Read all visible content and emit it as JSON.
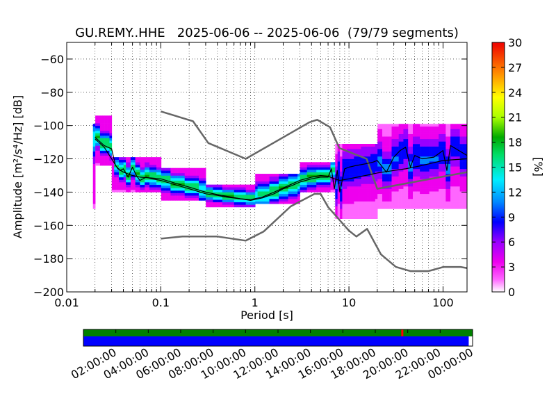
{
  "chart_data": {
    "type": "heatmap",
    "title": "GU.REMY..HHE   2025-06-06 -- 2025-06-06  (79/79 segments)",
    "xlabel": "Period [s]",
    "ylabel": "Amplitude [m²/s⁴/Hz] [dB]",
    "x_scale": "log",
    "xlim": [
      0.01,
      180
    ],
    "ylim": [
      -200,
      -50
    ],
    "x_ticks": [
      {
        "value": 0.01,
        "label": "0.01"
      },
      {
        "value": 0.1,
        "label": "0.1"
      },
      {
        "value": 1,
        "label": "1"
      },
      {
        "value": 10,
        "label": "10"
      },
      {
        "value": 100,
        "label": "100"
      }
    ],
    "y_ticks": [
      {
        "value": -60,
        "label": "−60"
      },
      {
        "value": -80,
        "label": "−80"
      },
      {
        "value": -100,
        "label": "−100"
      },
      {
        "value": -120,
        "label": "−120"
      },
      {
        "value": -140,
        "label": "−140"
      },
      {
        "value": -160,
        "label": "−160"
      },
      {
        "value": -180,
        "label": "−180"
      },
      {
        "value": -200,
        "label": "−200"
      }
    ],
    "grid": true,
    "colorbar": {
      "label": "[%]",
      "range": [
        0,
        30
      ],
      "ticks": [
        "0",
        "3",
        "6",
        "9",
        "12",
        "15",
        "18",
        "21",
        "24",
        "27",
        "30"
      ],
      "colormap": "pqlx"
    },
    "noise_model_high": [
      {
        "x": 0.1,
        "y": -91.5
      },
      {
        "x": 0.22,
        "y": -97.4
      },
      {
        "x": 0.32,
        "y": -110.5
      },
      {
        "x": 0.8,
        "y": -120
      },
      {
        "x": 3.8,
        "y": -98
      },
      {
        "x": 4.6,
        "y": -96.5
      },
      {
        "x": 6.3,
        "y": -101
      },
      {
        "x": 7.9,
        "y": -113.5
      },
      {
        "x": 15.4,
        "y": -120
      },
      {
        "x": 20,
        "y": -138
      },
      {
        "x": 180,
        "y": -128
      }
    ],
    "noise_model_low": [
      {
        "x": 0.1,
        "y": -168
      },
      {
        "x": 0.17,
        "y": -166.7
      },
      {
        "x": 0.4,
        "y": -166.7
      },
      {
        "x": 0.8,
        "y": -169.2
      },
      {
        "x": 1.24,
        "y": -163.7
      },
      {
        "x": 2.4,
        "y": -148.6
      },
      {
        "x": 4.3,
        "y": -141.1
      },
      {
        "x": 5,
        "y": -141.1
      },
      {
        "x": 6,
        "y": -149
      },
      {
        "x": 10,
        "y": -163.2
      },
      {
        "x": 12,
        "y": -166.7
      },
      {
        "x": 15.6,
        "y": -162.1
      },
      {
        "x": 21.9,
        "y": -177.5
      },
      {
        "x": 31.6,
        "y": -185
      },
      {
        "x": 45,
        "y": -187.5
      },
      {
        "x": 70,
        "y": -187.5
      },
      {
        "x": 101,
        "y": -185
      },
      {
        "x": 154,
        "y": -185
      },
      {
        "x": 180,
        "y": -185.7
      }
    ],
    "mean_psd": [
      {
        "x": 0.02,
        "y": -108
      },
      {
        "x": 0.025,
        "y": -113
      },
      {
        "x": 0.03,
        "y": -120
      },
      {
        "x": 0.035,
        "y": -126
      },
      {
        "x": 0.04,
        "y": -128
      },
      {
        "x": 0.05,
        "y": -130
      },
      {
        "x": 0.06,
        "y": -131
      },
      {
        "x": 0.08,
        "y": -131.5
      },
      {
        "x": 0.1,
        "y": -132
      },
      {
        "x": 0.15,
        "y": -135
      },
      {
        "x": 0.2,
        "y": -137
      },
      {
        "x": 0.3,
        "y": -140
      },
      {
        "x": 0.4,
        "y": -141.5
      },
      {
        "x": 0.5,
        "y": -142.5
      },
      {
        "x": 0.7,
        "y": -144
      },
      {
        "x": 0.9,
        "y": -144.5
      },
      {
        "x": 1.2,
        "y": -143
      },
      {
        "x": 1.6,
        "y": -140
      },
      {
        "x": 2,
        "y": -137.5
      },
      {
        "x": 2.5,
        "y": -135
      },
      {
        "x": 3,
        "y": -133
      },
      {
        "x": 4,
        "y": -131
      },
      {
        "x": 5,
        "y": -130
      },
      {
        "x": 6,
        "y": -130.5
      },
      {
        "x": 7,
        "y": -132
      },
      {
        "x": 8,
        "y": -133
      },
      {
        "x": 10,
        "y": -132
      },
      {
        "x": 15,
        "y": -130
      },
      {
        "x": 20,
        "y": -128.5
      },
      {
        "x": 30,
        "y": -127
      },
      {
        "x": 40,
        "y": -126
      },
      {
        "x": 60,
        "y": -124
      },
      {
        "x": 100,
        "y": -121
      },
      {
        "x": 180,
        "y": -120
      }
    ],
    "mode_psd": [
      {
        "x": 0.02,
        "y": -107
      },
      {
        "x": 0.025,
        "y": -112
      },
      {
        "x": 0.03,
        "y": -114
      },
      {
        "x": 0.033,
        "y": -124
      },
      {
        "x": 0.037,
        "y": -127
      },
      {
        "x": 0.04,
        "y": -126
      },
      {
        "x": 0.045,
        "y": -131
      },
      {
        "x": 0.05,
        "y": -125
      },
      {
        "x": 0.055,
        "y": -130
      },
      {
        "x": 0.06,
        "y": -133
      },
      {
        "x": 0.07,
        "y": -131
      },
      {
        "x": 0.08,
        "y": -132
      },
      {
        "x": 0.1,
        "y": -133
      },
      {
        "x": 0.15,
        "y": -136
      },
      {
        "x": 0.2,
        "y": -138
      },
      {
        "x": 0.3,
        "y": -141
      },
      {
        "x": 0.4,
        "y": -142
      },
      {
        "x": 0.5,
        "y": -143
      },
      {
        "x": 0.7,
        "y": -144
      },
      {
        "x": 0.9,
        "y": -145
      },
      {
        "x": 1.2,
        "y": -143.5
      },
      {
        "x": 1.6,
        "y": -141
      },
      {
        "x": 2,
        "y": -138
      },
      {
        "x": 2.5,
        "y": -136
      },
      {
        "x": 3,
        "y": -134
      },
      {
        "x": 4,
        "y": -132
      },
      {
        "x": 5,
        "y": -131
      },
      {
        "x": 6,
        "y": -131
      },
      {
        "x": 6.5,
        "y": -126
      },
      {
        "x": 7,
        "y": -138
      },
      {
        "x": 7.5,
        "y": -127
      },
      {
        "x": 8,
        "y": -140
      },
      {
        "x": 9,
        "y": -126
      },
      {
        "x": 10,
        "y": -125
      },
      {
        "x": 12,
        "y": -124
      },
      {
        "x": 15,
        "y": -123
      },
      {
        "x": 18,
        "y": -122
      },
      {
        "x": 20,
        "y": -121
      },
      {
        "x": 25,
        "y": -128
      },
      {
        "x": 30,
        "y": -119
      },
      {
        "x": 35,
        "y": -115
      },
      {
        "x": 40,
        "y": -113
      },
      {
        "x": 45,
        "y": -125
      },
      {
        "x": 50,
        "y": -118
      },
      {
        "x": 60,
        "y": -120
      },
      {
        "x": 80,
        "y": -119
      },
      {
        "x": 100,
        "y": -115
      },
      {
        "x": 110,
        "y": -127
      },
      {
        "x": 120,
        "y": -112
      },
      {
        "x": 180,
        "y": -118
      }
    ],
    "density_bands": [
      {
        "x_start": 0.019,
        "x_end": 0.03,
        "core": [
          -114,
          -106
        ],
        "outer": [
          -124,
          -94
        ]
      },
      {
        "x_start": 0.03,
        "x_end": 0.1,
        "core": [
          -134,
          -126
        ],
        "outer": [
          -140,
          -120
        ]
      },
      {
        "x_start": 0.1,
        "x_end": 0.3,
        "core": [
          -140,
          -132
        ],
        "outer": [
          -145,
          -126
        ]
      },
      {
        "x_start": 0.3,
        "x_end": 1.0,
        "core": [
          -146,
          -140
        ],
        "outer": [
          -149,
          -136
        ]
      },
      {
        "x_start": 1.0,
        "x_end": 3.0,
        "core": [
          -144,
          -134
        ],
        "outer": [
          -147,
          -130
        ]
      },
      {
        "x_start": 3.0,
        "x_end": 7.0,
        "core": [
          -134,
          -126
        ],
        "outer": [
          -140,
          -122
        ]
      },
      {
        "x_start": 7.0,
        "x_end": 20.0,
        "core": [
          -140,
          -126
        ],
        "outer": [
          -156,
          -112
        ]
      },
      {
        "x_start": 20.0,
        "x_end": 180.0,
        "core": [
          -135,
          -120
        ],
        "outer": [
          -150,
          -100
        ]
      }
    ]
  },
  "timeline": {
    "tick_labels": [
      "02:00:00",
      "04:00:00",
      "06:00:00",
      "08:00:00",
      "10:00:00",
      "12:00:00",
      "14:00:00",
      "16:00:00",
      "18:00:00",
      "20:00:00",
      "22:00:00",
      "00:00:00"
    ],
    "data_color": "#008000",
    "used_color": "#0000ff",
    "gap_color": "#ff0000",
    "gap_hour": 19.6,
    "data_coverage": 1.0,
    "used_coverage": 0.99
  }
}
